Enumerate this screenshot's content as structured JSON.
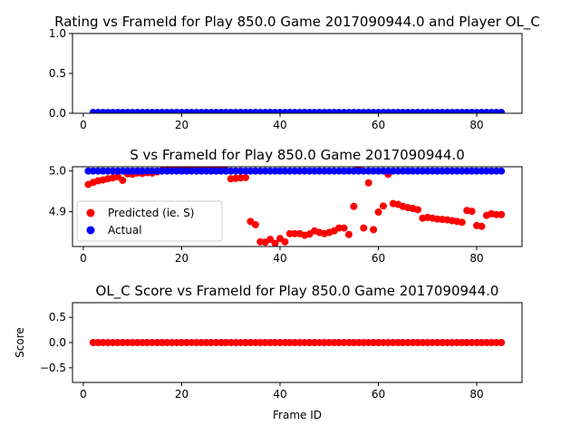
{
  "chart_data": [
    {
      "type": "scatter",
      "title": "Rating vs FrameId for Play 850.0 Game 2017090944.0 and Player OL_C",
      "xlabel": "",
      "ylabel": "",
      "xlim": [
        -2.2,
        89.2
      ],
      "ylim": [
        0,
        1.0
      ],
      "xticks": [
        0,
        20,
        40,
        60,
        80
      ],
      "xtick_labels": [
        "0",
        "20",
        "40",
        "60",
        "80"
      ],
      "yticks": [
        0,
        0.5,
        1.0
      ],
      "ytick_labels": [
        "0.0",
        "0.5",
        "1.0"
      ],
      "series": [
        {
          "color": "#0000ff",
          "x": [
            2,
            3,
            4,
            5,
            6,
            7,
            8,
            9,
            10,
            11,
            12,
            13,
            14,
            15,
            16,
            17,
            18,
            19,
            20,
            21,
            22,
            23,
            24,
            25,
            26,
            27,
            28,
            29,
            30,
            31,
            32,
            33,
            34,
            35,
            36,
            37,
            38,
            39,
            40,
            41,
            42,
            43,
            44,
            45,
            46,
            47,
            48,
            49,
            50,
            51,
            52,
            53,
            54,
            55,
            56,
            57,
            58,
            59,
            60,
            61,
            62,
            63,
            64,
            65,
            66,
            67,
            68,
            69,
            70,
            71,
            72,
            73,
            74,
            75,
            76,
            77,
            78,
            79,
            80,
            81,
            82,
            83,
            84,
            85
          ],
          "y": [
            0.01,
            0.01,
            0.01,
            0.01,
            0.01,
            0.01,
            0.01,
            0.01,
            0.01,
            0.01,
            0.01,
            0.01,
            0.01,
            0.01,
            0.01,
            0.01,
            0.01,
            0.01,
            0.01,
            0.01,
            0.01,
            0.01,
            0.01,
            0.01,
            0.01,
            0.01,
            0.01,
            0.01,
            0.01,
            0.01,
            0.01,
            0.01,
            0.01,
            0.01,
            0.01,
            0.01,
            0.01,
            0.01,
            0.01,
            0.01,
            0.01,
            0.01,
            0.01,
            0.01,
            0.01,
            0.01,
            0.01,
            0.01,
            0.01,
            0.01,
            0.01,
            0.01,
            0.01,
            0.01,
            0.01,
            0.01,
            0.01,
            0.01,
            0.01,
            0.01,
            0.01,
            0.01,
            0.01,
            0.01,
            0.01,
            0.01,
            0.01,
            0.01,
            0.01,
            0.01,
            0.01,
            0.01,
            0.01,
            0.01,
            0.01,
            0.01,
            0.01,
            0.01,
            0.01,
            0.01,
            0.01,
            0.01,
            0.01,
            0.01
          ]
        }
      ]
    },
    {
      "type": "scatter",
      "title": "S vs FrameId for Play 850.0 Game 2017090944.0",
      "xlabel": "",
      "ylabel": "",
      "xlim": [
        -2.2,
        89.2
      ],
      "ylim": [
        4.8145,
        5.0105
      ],
      "xticks": [
        0,
        20,
        40,
        60,
        80
      ],
      "xtick_labels": [
        "0",
        "20",
        "40",
        "60",
        "80"
      ],
      "yticks": [
        4.9,
        5.0
      ],
      "ytick_labels": [
        "4.9",
        "5.0"
      ],
      "legend": "upper left",
      "series": [
        {
          "name": "Predicted (ie. S)",
          "color": "#ff0000",
          "x": [
            1,
            2,
            3,
            4,
            5,
            6,
            7,
            8,
            9,
            10,
            11,
            12,
            13,
            14,
            15,
            16,
            17,
            18,
            19,
            20,
            21,
            22,
            23,
            24,
            25,
            26,
            27,
            28,
            29,
            30,
            31,
            32,
            33,
            34,
            35,
            36,
            37,
            38,
            39,
            40,
            41,
            42,
            43,
            44,
            45,
            46,
            47,
            48,
            49,
            50,
            51,
            52,
            53,
            54,
            55,
            56,
            57,
            58,
            59,
            60,
            61,
            62,
            63,
            64,
            65,
            66,
            67,
            68,
            69,
            70,
            71,
            72,
            73,
            74,
            75,
            76,
            77,
            78,
            79,
            80,
            81,
            82,
            83,
            84,
            85
          ],
          "y": [
            4.967,
            4.972,
            4.976,
            4.978,
            4.981,
            4.983,
            4.986,
            4.977,
            4.993,
            4.992,
            4.995,
            4.994,
            4.996,
            4.995,
            4.998,
            5.001,
            5.003,
            5.004,
            5.006,
            5.007,
            5.006,
            5.005,
            5.008,
            5.009,
            5.006,
            5.005,
            5.004,
            5.003,
            5.002,
            4.981,
            4.982,
            4.983,
            4.984,
            4.876,
            4.868,
            4.826,
            4.825,
            4.832,
            4.822,
            4.834,
            4.826,
            4.846,
            4.846,
            4.846,
            4.842,
            4.845,
            4.853,
            4.849,
            4.846,
            4.849,
            4.853,
            4.86,
            4.86,
            4.844,
            4.913,
            5.006,
            4.86,
            4.971,
            4.856,
            4.899,
            4.914,
            4.992,
            4.92,
            4.918,
            4.913,
            4.91,
            4.908,
            4.905,
            4.884,
            4.886,
            4.884,
            4.882,
            4.881,
            4.88,
            4.878,
            4.876,
            4.874,
            4.903,
            4.901,
            4.866,
            4.864,
            4.891,
            4.895,
            4.893,
            4.893
          ]
        },
        {
          "name": "Actual",
          "color": "#0000ff",
          "x": [
            1,
            2,
            3,
            4,
            5,
            6,
            7,
            8,
            9,
            10,
            11,
            12,
            13,
            14,
            15,
            16,
            17,
            18,
            19,
            20,
            21,
            22,
            23,
            24,
            25,
            26,
            27,
            28,
            29,
            30,
            31,
            32,
            33,
            34,
            35,
            36,
            37,
            38,
            39,
            40,
            41,
            42,
            43,
            44,
            45,
            46,
            47,
            48,
            49,
            50,
            51,
            52,
            53,
            54,
            55,
            56,
            57,
            58,
            59,
            60,
            61,
            62,
            63,
            64,
            65,
            66,
            67,
            68,
            69,
            70,
            71,
            72,
            73,
            74,
            75,
            76,
            77,
            78,
            79,
            80,
            81,
            82,
            83,
            84,
            85
          ],
          "y": [
            5.0,
            5.0,
            5.0,
            5.0,
            5.0,
            5.0,
            5.0,
            5.0,
            5.0,
            5.0,
            5.0,
            5.0,
            5.0,
            5.0,
            5.0,
            5.0,
            5.0,
            5.0,
            5.0,
            5.0,
            5.0,
            5.0,
            5.0,
            5.0,
            5.0,
            5.0,
            5.0,
            5.0,
            5.0,
            5.0,
            5.0,
            5.0,
            5.0,
            5.0,
            5.0,
            5.0,
            5.0,
            5.0,
            5.0,
            5.0,
            5.0,
            5.0,
            5.0,
            5.0,
            5.0,
            5.0,
            5.0,
            5.0,
            5.0,
            5.0,
            5.0,
            5.0,
            5.0,
            5.0,
            5.0,
            5.0,
            5.0,
            5.0,
            5.0,
            5.0,
            5.0,
            5.0,
            5.0,
            5.0,
            5.0,
            5.0,
            5.0,
            5.0,
            5.0,
            5.0,
            5.0,
            5.0,
            5.0,
            5.0,
            5.0,
            5.0,
            5.0,
            5.0,
            5.0,
            5.0,
            5.0,
            5.0,
            5.0,
            5.0,
            5.0
          ]
        }
      ]
    },
    {
      "type": "scatter",
      "title": "OL_C Score vs FrameId for Play 850.0 Game 2017090944.0",
      "xlabel": "Frame ID",
      "ylabel": "Score",
      "xlim": [
        -2.2,
        89.2
      ],
      "ylim": [
        -0.79,
        0.79
      ],
      "xticks": [
        0,
        20,
        40,
        60,
        80
      ],
      "xtick_labels": [
        "0",
        "20",
        "40",
        "60",
        "80"
      ],
      "yticks": [
        -0.5,
        0.0,
        0.5
      ],
      "ytick_labels": [
        "−0.5",
        "0.0",
        "0.5"
      ],
      "series": [
        {
          "color": "#ff0000",
          "x": [
            2,
            3,
            4,
            5,
            6,
            7,
            8,
            9,
            10,
            11,
            12,
            13,
            14,
            15,
            16,
            17,
            18,
            19,
            20,
            21,
            22,
            23,
            24,
            25,
            26,
            27,
            28,
            29,
            30,
            31,
            32,
            33,
            34,
            35,
            36,
            37,
            38,
            39,
            40,
            41,
            42,
            43,
            44,
            45,
            46,
            47,
            48,
            49,
            50,
            51,
            52,
            53,
            54,
            55,
            56,
            57,
            58,
            59,
            60,
            61,
            62,
            63,
            64,
            65,
            66,
            67,
            68,
            69,
            70,
            71,
            72,
            73,
            74,
            75,
            76,
            77,
            78,
            79,
            80,
            81,
            82,
            83,
            84,
            85
          ],
          "y": [
            0,
            0,
            0,
            0,
            0,
            0,
            0,
            0,
            0,
            0,
            0,
            0,
            0,
            0,
            0,
            0,
            0,
            0,
            0,
            0,
            0,
            0,
            0,
            0,
            0,
            0,
            0,
            0,
            0,
            0,
            0,
            0,
            0,
            0,
            0,
            0,
            0,
            0,
            0,
            0,
            0,
            0,
            0,
            0,
            0,
            0,
            0,
            0,
            0,
            0,
            0,
            0,
            0,
            0,
            0,
            0,
            0,
            0,
            0,
            0,
            0,
            0,
            0,
            0,
            0,
            0,
            0,
            0,
            0,
            0,
            0,
            0,
            0,
            0,
            0,
            0,
            0,
            0,
            0,
            0,
            0,
            0,
            0,
            0
          ]
        }
      ]
    }
  ]
}
